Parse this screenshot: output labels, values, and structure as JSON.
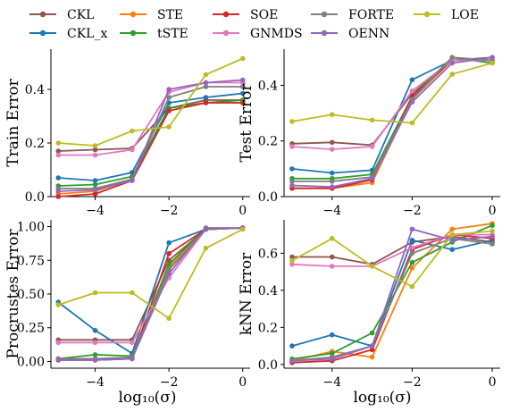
{
  "legend": {
    "items": [
      {
        "name": "CKL",
        "color": "#8c564b"
      },
      {
        "name": "STE",
        "color": "#ff7f0e"
      },
      {
        "name": "SOE",
        "color": "#d62728"
      },
      {
        "name": "FORTE",
        "color": "#7f7f7f"
      },
      {
        "name": "LOE",
        "color": "#bcbd22"
      },
      {
        "name": "CKL_x",
        "color": "#1f77b4"
      },
      {
        "name": "tSTE",
        "color": "#2ca02c"
      },
      {
        "name": "GNMDS",
        "color": "#e377c2"
      },
      {
        "name": "OENN",
        "color": "#9467bd"
      }
    ]
  },
  "xlabel": "log₁₀(σ)",
  "chart_data": [
    {
      "type": "line",
      "ylabel": "Train Error",
      "x": [
        -5,
        -4,
        -3,
        -2,
        -1,
        0
      ],
      "xlim": [
        -5.2,
        0.2
      ],
      "ylim": [
        0,
        0.55
      ],
      "xticks": [
        -4,
        -2,
        0
      ],
      "yticks": [
        0.0,
        0.2,
        0.4
      ],
      "xtick_labels": [
        "−4",
        "−2",
        "0"
      ],
      "ytick_labels": [
        "0.0",
        "0.2",
        "0.4"
      ],
      "series": [
        {
          "name": "CKL",
          "color": "#8c564b",
          "values": [
            0.17,
            0.175,
            0.18,
            0.33,
            0.36,
            0.36
          ]
        },
        {
          "name": "CKL_x",
          "color": "#1f77b4",
          "values": [
            0.07,
            0.06,
            0.09,
            0.35,
            0.37,
            0.385
          ]
        },
        {
          "name": "STE",
          "color": "#ff7f0e",
          "values": [
            0.01,
            0.02,
            0.065,
            0.33,
            0.35,
            0.35
          ]
        },
        {
          "name": "tSTE",
          "color": "#2ca02c",
          "values": [
            0.04,
            0.045,
            0.075,
            0.33,
            0.35,
            0.36
          ]
        },
        {
          "name": "SOE",
          "color": "#d62728",
          "values": [
            0.0,
            0.01,
            0.06,
            0.32,
            0.35,
            0.35
          ]
        },
        {
          "name": "GNMDS",
          "color": "#e377c2",
          "values": [
            0.155,
            0.155,
            0.175,
            0.39,
            0.425,
            0.425
          ]
        },
        {
          "name": "FORTE",
          "color": "#7f7f7f",
          "values": [
            0.03,
            0.03,
            0.065,
            0.37,
            0.41,
            0.41
          ]
        },
        {
          "name": "OENN",
          "color": "#9467bd",
          "values": [
            0.02,
            0.025,
            0.06,
            0.4,
            0.425,
            0.435
          ]
        },
        {
          "name": "LOE",
          "color": "#bcbd22",
          "values": [
            0.2,
            0.19,
            0.245,
            0.26,
            0.455,
            0.515
          ]
        }
      ]
    },
    {
      "type": "line",
      "ylabel": "Test Error",
      "x": [
        -5,
        -4,
        -3,
        -2,
        -1,
        0
      ],
      "xlim": [
        -5.2,
        0.2
      ],
      "ylim": [
        0,
        0.53
      ],
      "xticks": [
        -4,
        -2,
        0
      ],
      "yticks": [
        0.0,
        0.2,
        0.4
      ],
      "xtick_labels": [
        "−4",
        "−2",
        "0"
      ],
      "ytick_labels": [
        "0.0",
        "0.2",
        "0.4"
      ],
      "series": [
        {
          "name": "CKL",
          "color": "#8c564b",
          "values": [
            0.19,
            0.195,
            0.185,
            0.37,
            0.49,
            0.5
          ]
        },
        {
          "name": "CKL_x",
          "color": "#1f77b4",
          "values": [
            0.1,
            0.085,
            0.095,
            0.42,
            0.49,
            0.49
          ]
        },
        {
          "name": "STE",
          "color": "#ff7f0e",
          "values": [
            0.03,
            0.03,
            0.05,
            0.35,
            0.49,
            0.49
          ]
        },
        {
          "name": "tSTE",
          "color": "#2ca02c",
          "values": [
            0.065,
            0.065,
            0.08,
            0.36,
            0.5,
            0.48
          ]
        },
        {
          "name": "SOE",
          "color": "#d62728",
          "values": [
            0.03,
            0.03,
            0.06,
            0.36,
            0.49,
            0.49
          ]
        },
        {
          "name": "GNMDS",
          "color": "#e377c2",
          "values": [
            0.18,
            0.17,
            0.18,
            0.38,
            0.49,
            0.49
          ]
        },
        {
          "name": "FORTE",
          "color": "#7f7f7f",
          "values": [
            0.055,
            0.055,
            0.07,
            0.35,
            0.5,
            0.49
          ]
        },
        {
          "name": "OENN",
          "color": "#9467bd",
          "values": [
            0.04,
            0.035,
            0.065,
            0.34,
            0.48,
            0.5
          ]
        },
        {
          "name": "LOE",
          "color": "#bcbd22",
          "values": [
            0.27,
            0.295,
            0.275,
            0.265,
            0.44,
            0.48
          ]
        }
      ]
    },
    {
      "type": "line",
      "ylabel": "Procrustes Error",
      "x": [
        -5,
        -4,
        -3,
        -2,
        -1,
        0
      ],
      "xlim": [
        -5.2,
        0.2
      ],
      "ylim": [
        -0.05,
        1.05
      ],
      "xticks": [
        -4,
        -2,
        0
      ],
      "yticks": [
        0.0,
        0.25,
        0.5,
        0.75,
        1.0
      ],
      "xtick_labels": [
        "−4",
        "−2",
        "0"
      ],
      "ytick_labels": [
        "0.00",
        "0.25",
        "0.50",
        "0.75",
        "1.00"
      ],
      "series": [
        {
          "name": "CKL",
          "color": "#8c564b",
          "values": [
            0.16,
            0.16,
            0.16,
            0.75,
            0.98,
            0.99
          ]
        },
        {
          "name": "CKL_x",
          "color": "#1f77b4",
          "values": [
            0.44,
            0.23,
            0.06,
            0.88,
            0.98,
            0.99
          ]
        },
        {
          "name": "STE",
          "color": "#ff7f0e",
          "values": [
            0.01,
            0.01,
            0.02,
            0.7,
            0.98,
            0.99
          ]
        },
        {
          "name": "tSTE",
          "color": "#2ca02c",
          "values": [
            0.02,
            0.05,
            0.04,
            0.72,
            0.99,
            0.99
          ]
        },
        {
          "name": "SOE",
          "color": "#d62728",
          "values": [
            0.01,
            0.01,
            0.02,
            0.8,
            0.98,
            0.99
          ]
        },
        {
          "name": "GNMDS",
          "color": "#e377c2",
          "values": [
            0.14,
            0.14,
            0.14,
            0.62,
            0.98,
            0.99
          ]
        },
        {
          "name": "FORTE",
          "color": "#7f7f7f",
          "values": [
            0.02,
            0.02,
            0.03,
            0.68,
            0.98,
            0.99
          ]
        },
        {
          "name": "OENN",
          "color": "#9467bd",
          "values": [
            0.01,
            0.01,
            0.02,
            0.65,
            0.99,
            0.99
          ]
        },
        {
          "name": "LOE",
          "color": "#bcbd22",
          "values": [
            0.42,
            0.51,
            0.51,
            0.32,
            0.84,
            0.98
          ]
        }
      ]
    },
    {
      "type": "line",
      "ylabel": "kNN Error",
      "x": [
        -5,
        -4,
        -3,
        -2,
        -1,
        0
      ],
      "xlim": [
        -5.2,
        0.2
      ],
      "ylim": [
        -0.02,
        0.78
      ],
      "xticks": [
        -4,
        -2,
        0
      ],
      "yticks": [
        0.0,
        0.2,
        0.4,
        0.6
      ],
      "xtick_labels": [
        "−4",
        "−2",
        "0"
      ],
      "ytick_labels": [
        "0.0",
        "0.2",
        "0.4",
        "0.6"
      ],
      "series": [
        {
          "name": "CKL",
          "color": "#8c564b",
          "values": [
            0.58,
            0.58,
            0.54,
            0.66,
            0.69,
            0.66
          ]
        },
        {
          "name": "CKL_x",
          "color": "#1f77b4",
          "values": [
            0.1,
            0.16,
            0.1,
            0.67,
            0.62,
            0.67
          ]
        },
        {
          "name": "STE",
          "color": "#ff7f0e",
          "values": [
            0.02,
            0.07,
            0.04,
            0.52,
            0.73,
            0.76
          ]
        },
        {
          "name": "tSTE",
          "color": "#2ca02c",
          "values": [
            0.03,
            0.06,
            0.17,
            0.55,
            0.66,
            0.75
          ]
        },
        {
          "name": "SOE",
          "color": "#d62728",
          "values": [
            0.01,
            0.02,
            0.08,
            0.62,
            0.7,
            0.68
          ]
        },
        {
          "name": "GNMDS",
          "color": "#e377c2",
          "values": [
            0.54,
            0.53,
            0.53,
            0.63,
            0.7,
            0.7
          ]
        },
        {
          "name": "FORTE",
          "color": "#7f7f7f",
          "values": [
            0.02,
            0.04,
            0.1,
            0.6,
            0.68,
            0.65
          ]
        },
        {
          "name": "OENN",
          "color": "#9467bd",
          "values": [
            0.02,
            0.03,
            0.1,
            0.73,
            0.67,
            0.69
          ]
        },
        {
          "name": "LOE",
          "color": "#bcbd22",
          "values": [
            0.56,
            0.68,
            0.53,
            0.42,
            0.7,
            0.72
          ]
        }
      ]
    }
  ]
}
